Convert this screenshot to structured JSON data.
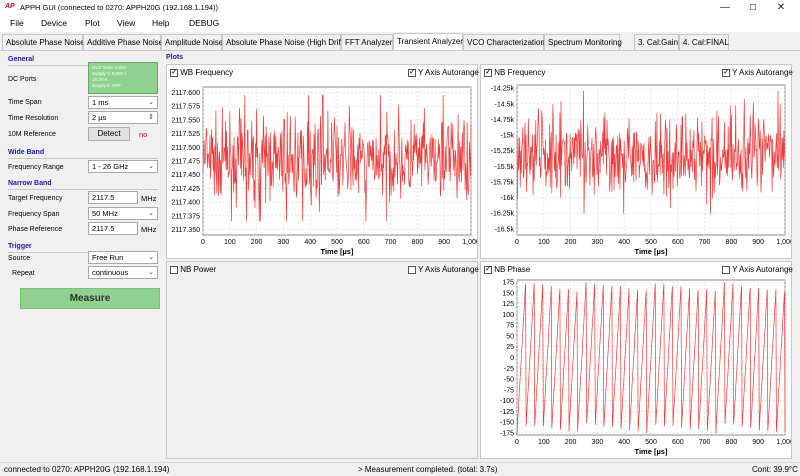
{
  "window": {
    "logo": "AP",
    "title": "APPH GUI (connected to 0270: APPH20G (192.168.1.194))",
    "minimize": "—",
    "maximize": "☐",
    "close": "✕"
  },
  "menu": [
    "File",
    "Device",
    "Plot",
    "View",
    "Help",
    "DEBUG"
  ],
  "tabs": [
    "Absolute Phase Noise",
    "Additive Phase Noise",
    "Amplitude Noise",
    "Absolute Phase Noise (High Drift)",
    "FFT Analyzer",
    "Transient Analyzer",
    "VCO Characterization",
    "Spectrum Monitoring",
    "3. Cal:Gain",
    "4. Cal:FINAL"
  ],
  "active_tab": "Transient Analyzer",
  "left": {
    "general_header": "General",
    "dc_ports_label": "DC Ports",
    "dc_box": [
      "OUT Tune: 0.50V",
      "Supply 1: 5.00V /",
      "18.3mA",
      "Supply 2: OFF"
    ],
    "time_span_label": "Time Span",
    "time_span_value": "1 ms",
    "time_res_label": "Time Resolution",
    "time_res_value": "2 µs",
    "ref_label": "10M Reference",
    "detect_label": "Detect",
    "detect_status": "no",
    "wideband_header": "Wide Band",
    "freq_range_label": "Frequency Range",
    "freq_range_value": "1 - 26 GHz",
    "narrowband_header": "Narrow Band",
    "target_freq_label": "Target Frequency",
    "target_freq_value": "2117.5",
    "freq_span_label": "Frequency Span",
    "freq_span_value": "50 MHz",
    "phase_ref_label": "Phase Reference",
    "phase_ref_value": "2117.5",
    "unit_mhz": "MHz",
    "trigger_header": "Trigger",
    "source_label": "Source",
    "source_value": "Free Run",
    "repeat_label": "Repeat",
    "repeat_value": "continuous",
    "measure_label": "Measure"
  },
  "plots_label": "Plots",
  "autorange_label": "Y Axis Autorange",
  "plot_titles": {
    "wb": "WB Frequency",
    "nb": "NB Frequency",
    "nbp": "NB Power",
    "phase": "NB Phase"
  },
  "status": {
    "left": "connected to 0270: APPH20G (192.168.1.194)",
    "middle": "> Measurement completed. (total: 3.7s)",
    "right": "Cont: 39.9°C"
  },
  "chart_data": [
    {
      "type": "line",
      "title": "WB Frequency",
      "xlabel": "Time [µs]",
      "ylabel": "",
      "xlim": [
        0,
        1000
      ],
      "ylim": [
        2117.34,
        2117.61
      ],
      "x_ticks": [
        "0",
        "100",
        "200",
        "300",
        "400",
        "500",
        "600",
        "700",
        "800",
        "900",
        "1,000"
      ],
      "y_ticks": [
        "2117.600",
        "2117.575",
        "2117.550",
        "2117.525",
        "2117.500",
        "2117.475",
        "2117.450",
        "2117.425",
        "2117.400",
        "2117.375",
        "2117.350"
      ],
      "series": [
        {
          "color": "#ee3b3b",
          "style": "noise",
          "mean": 2117.475,
          "min": 2117.36,
          "max": 2117.6
        }
      ]
    },
    {
      "type": "line",
      "title": "NB Frequency",
      "xlabel": "Time [µs]",
      "ylabel": "",
      "xlim": [
        0,
        1000
      ],
      "ylim": [
        -16.6,
        -14.2
      ],
      "x_ticks": [
        "0",
        "100",
        "200",
        "300",
        "400",
        "500",
        "600",
        "700",
        "800",
        "900",
        "1,000"
      ],
      "y_ticks": [
        "-14.25k",
        "-14.5k",
        "-14.75k",
        "-15k",
        "-15.25k",
        "-15.5k",
        "-15.75k",
        "-16k",
        "-16.25k",
        "-16.5k"
      ],
      "series": [
        {
          "color": "#ee3b3b",
          "style": "noise",
          "mean": -15.35,
          "min": -16.3,
          "max": -14.25
        }
      ]
    },
    {
      "type": "line",
      "title": "NB Phase",
      "xlabel": "Time [µs]",
      "ylabel": "",
      "xlim": [
        0,
        1000
      ],
      "ylim": [
        -180,
        180
      ],
      "x_ticks": [
        "0",
        "100",
        "200",
        "300",
        "400",
        "500",
        "600",
        "700",
        "800",
        "900",
        "1,000"
      ],
      "y_ticks": [
        "175",
        "150",
        "125",
        "100",
        "75",
        "50",
        "25",
        "0",
        "-25",
        "-50",
        "-75",
        "-100",
        "-125",
        "-150",
        "-175"
      ],
      "series": [
        {
          "color": "#ee3b3b",
          "style": "wrapped-phase",
          "cycles": 31,
          "min": -180,
          "max": 180
        }
      ]
    }
  ]
}
